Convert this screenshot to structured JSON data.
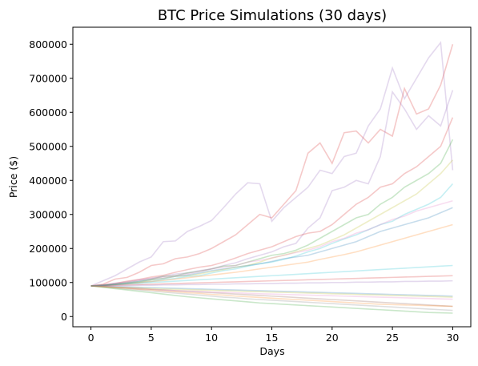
{
  "chart_data": {
    "type": "line",
    "title": "BTC Price Simulations (30 days)",
    "xlabel": "Days",
    "ylabel": "Price ($)",
    "xlim": [
      -1.5,
      31.5
    ],
    "ylim": [
      -30000,
      850000
    ],
    "xticks": [
      0,
      5,
      10,
      15,
      20,
      25,
      30
    ],
    "yticks": [
      0,
      100000,
      200000,
      300000,
      400000,
      500000,
      600000,
      700000,
      800000
    ],
    "grid": false,
    "start_price": 90000,
    "num_simulations": 100,
    "days": 30,
    "line_alpha": 0.25,
    "colors": [
      "#1f77b4",
      "#ff7f0e",
      "#2ca02c",
      "#d62728",
      "#9467bd",
      "#8c564b",
      "#e377c2",
      "#7f7f7f",
      "#bcbd22",
      "#17becf"
    ],
    "series": [
      {
        "color": "#9467bd",
        "values": [
          90000,
          105000,
          120000,
          140000,
          160000,
          175000,
          220000,
          222000,
          250000,
          265000,
          282000,
          320000,
          360000,
          393000,
          390000,
          280000,
          320000,
          350000,
          380000,
          430000,
          420000,
          470000,
          480000,
          560000,
          610000,
          730000,
          640000,
          700000,
          760000,
          805000,
          430000
        ]
      },
      {
        "color": "#d62728",
        "values": [
          90000,
          95000,
          110000,
          115000,
          130000,
          150000,
          155000,
          170000,
          175000,
          185000,
          200000,
          220000,
          240000,
          270000,
          300000,
          290000,
          330000,
          370000,
          480000,
          510000,
          450000,
          540000,
          545000,
          510000,
          550000,
          530000,
          670000,
          595000,
          610000,
          680000,
          800000
        ]
      },
      {
        "color": "#9467bd",
        "values": [
          90000,
          92000,
          98000,
          102000,
          108000,
          112000,
          118000,
          125000,
          128000,
          135000,
          140000,
          150000,
          158000,
          170000,
          180000,
          190000,
          205000,
          215000,
          260000,
          290000,
          370000,
          380000,
          400000,
          390000,
          470000,
          660000,
          610000,
          550000,
          590000,
          560000,
          665000
        ]
      },
      {
        "color": "#d62728",
        "values": [
          90000,
          93000,
          97000,
          104000,
          109000,
          116000,
          121000,
          130000,
          138000,
          145000,
          150000,
          160000,
          172000,
          185000,
          195000,
          205000,
          220000,
          235000,
          245000,
          250000,
          270000,
          300000,
          330000,
          350000,
          380000,
          390000,
          420000,
          440000,
          470000,
          500000,
          585000
        ]
      },
      {
        "color": "#2ca02c",
        "values": [
          90000,
          91000,
          95000,
          100000,
          104000,
          110000,
          118000,
          120000,
          128000,
          133000,
          140000,
          148000,
          150000,
          160000,
          170000,
          180000,
          185000,
          195000,
          210000,
          230000,
          250000,
          270000,
          290000,
          300000,
          330000,
          350000,
          380000,
          400000,
          420000,
          450000,
          520000
        ]
      },
      {
        "color": "#bcbd22",
        "values": [
          90000,
          92000,
          95000,
          98000,
          100000,
          108000,
          112000,
          118000,
          120000,
          125000,
          132000,
          138000,
          145000,
          150000,
          160000,
          172000,
          180000,
          190000,
          200000,
          210000,
          225000,
          240000,
          260000,
          280000,
          300000,
          320000,
          340000,
          360000,
          390000,
          420000,
          460000
        ]
      },
      {
        "color": "#17becf",
        "values": [
          90000,
          91000,
          94000,
          97000,
          100000,
          103000,
          108000,
          112000,
          118000,
          120000,
          128000,
          135000,
          140000,
          148000,
          155000,
          160000,
          168000,
          178000,
          190000,
          200000,
          215000,
          228000,
          240000,
          255000,
          270000,
          280000,
          300000,
          315000,
          330000,
          350000,
          390000
        ]
      },
      {
        "color": "#e377c2",
        "values": [
          90000,
          93000,
          96000,
          100000,
          106000,
          112000,
          116000,
          120000,
          125000,
          132000,
          140000,
          145000,
          150000,
          160000,
          165000,
          172000,
          180000,
          188000,
          195000,
          205000,
          220000,
          230000,
          245000,
          255000,
          270000,
          285000,
          295000,
          310000,
          320000,
          330000,
          340000
        ]
      },
      {
        "color": "#1f77b4",
        "values": [
          90000,
          92000,
          95000,
          98000,
          103000,
          108000,
          112000,
          118000,
          122000,
          128000,
          135000,
          140000,
          145000,
          150000,
          155000,
          162000,
          170000,
          175000,
          180000,
          190000,
          200000,
          210000,
          220000,
          235000,
          250000,
          260000,
          270000,
          280000,
          290000,
          305000,
          320000
        ]
      },
      {
        "color": "#ff7f0e",
        "values": [
          90000,
          91000,
          93000,
          96000,
          100000,
          103000,
          106000,
          110000,
          114000,
          118000,
          122000,
          126000,
          130000,
          135000,
          140000,
          145000,
          150000,
          155000,
          160000,
          168000,
          175000,
          182000,
          190000,
          200000,
          210000,
          220000,
          230000,
          240000,
          250000,
          260000,
          270000
        ]
      },
      {
        "color": "#8c564b",
        "values": [
          90000,
          88000,
          86000,
          84000,
          82000,
          80000,
          78000,
          76000,
          74000,
          72000,
          70000,
          68000,
          66000,
          64000,
          62000,
          60000,
          58000,
          56000,
          54000,
          52000,
          50000,
          48000,
          46000,
          44000,
          42000,
          40000,
          38000,
          36000,
          34000,
          32000,
          30000
        ]
      },
      {
        "color": "#7f7f7f",
        "values": [
          90000,
          87000,
          84000,
          81000,
          78000,
          75000,
          72000,
          69000,
          66000,
          63000,
          60000,
          57000,
          55000,
          52000,
          50000,
          48000,
          46000,
          44000,
          42000,
          40000,
          38000,
          36000,
          34000,
          32000,
          30000,
          28000,
          26000,
          24000,
          22000,
          20000,
          18000
        ]
      },
      {
        "color": "#2ca02c",
        "values": [
          90000,
          86000,
          82000,
          78000,
          74000,
          70000,
          66000,
          62000,
          58000,
          55000,
          52000,
          49000,
          46000,
          43000,
          40000,
          38000,
          36000,
          34000,
          32000,
          30000,
          28000,
          26000,
          24000,
          22000,
          20000,
          18000,
          16000,
          14000,
          12000,
          11000,
          10000
        ]
      },
      {
        "color": "#1f77b4",
        "values": [
          90000,
          89000,
          88000,
          87000,
          86000,
          85000,
          84000,
          83000,
          82000,
          81000,
          80000,
          79000,
          78000,
          77000,
          76000,
          75000,
          74000,
          73000,
          72000,
          71000,
          70000,
          69000,
          68000,
          67000,
          66000,
          65000,
          64000,
          63000,
          62000,
          61000,
          60000
        ]
      },
      {
        "color": "#ff7f0e",
        "values": [
          90000,
          88000,
          85000,
          83000,
          80000,
          78000,
          75000,
          73000,
          70000,
          68000,
          65000,
          63000,
          60000,
          58000,
          56000,
          54000,
          52000,
          50000,
          48000,
          46000,
          44000,
          42000,
          40000,
          38000,
          36000,
          35000,
          34000,
          33000,
          32000,
          31000,
          30000
        ]
      },
      {
        "color": "#d62728",
        "values": [
          90000,
          91000,
          92000,
          93000,
          94000,
          95000,
          96000,
          97000,
          98000,
          99000,
          100000,
          101000,
          102000,
          103000,
          104000,
          105000,
          106000,
          107000,
          108000,
          109000,
          110000,
          111000,
          112000,
          113000,
          114000,
          115000,
          116000,
          117000,
          118000,
          119000,
          120000
        ]
      },
      {
        "color": "#9467bd",
        "values": [
          90000,
          90000,
          91000,
          91000,
          92000,
          92000,
          93000,
          93000,
          94000,
          94000,
          95000,
          95000,
          96000,
          96000,
          97000,
          97000,
          98000,
          98000,
          99000,
          99000,
          100000,
          100000,
          101000,
          101000,
          102000,
          102000,
          103000,
          103000,
          104000,
          104000,
          105000
        ]
      },
      {
        "color": "#e377c2",
        "values": [
          90000,
          89000,
          87000,
          85000,
          82000,
          80000,
          78000,
          76000,
          75000,
          74000,
          72000,
          71000,
          70000,
          68000,
          67000,
          66000,
          65000,
          64000,
          63000,
          62000,
          61000,
          60000,
          59000,
          58000,
          57000,
          56000,
          55000,
          54000,
          53000,
          52000,
          51000
        ]
      },
      {
        "color": "#17becf",
        "values": [
          90000,
          92000,
          94000,
          96000,
          98000,
          100000,
          102000,
          104000,
          106000,
          108000,
          110000,
          112000,
          114000,
          116000,
          118000,
          120000,
          122000,
          124000,
          126000,
          128000,
          130000,
          132000,
          134000,
          136000,
          138000,
          140000,
          142000,
          144000,
          146000,
          148000,
          150000
        ]
      },
      {
        "color": "#bcbd22",
        "values": [
          90000,
          88000,
          86000,
          85000,
          84000,
          82000,
          81000,
          80000,
          79000,
          78000,
          77000,
          76000,
          75000,
          74000,
          73000,
          72000,
          71000,
          70000,
          69000,
          68000,
          67000,
          66000,
          65000,
          64000,
          63000,
          62000,
          61000,
          60000,
          59000,
          58000,
          57000
        ]
      }
    ]
  }
}
